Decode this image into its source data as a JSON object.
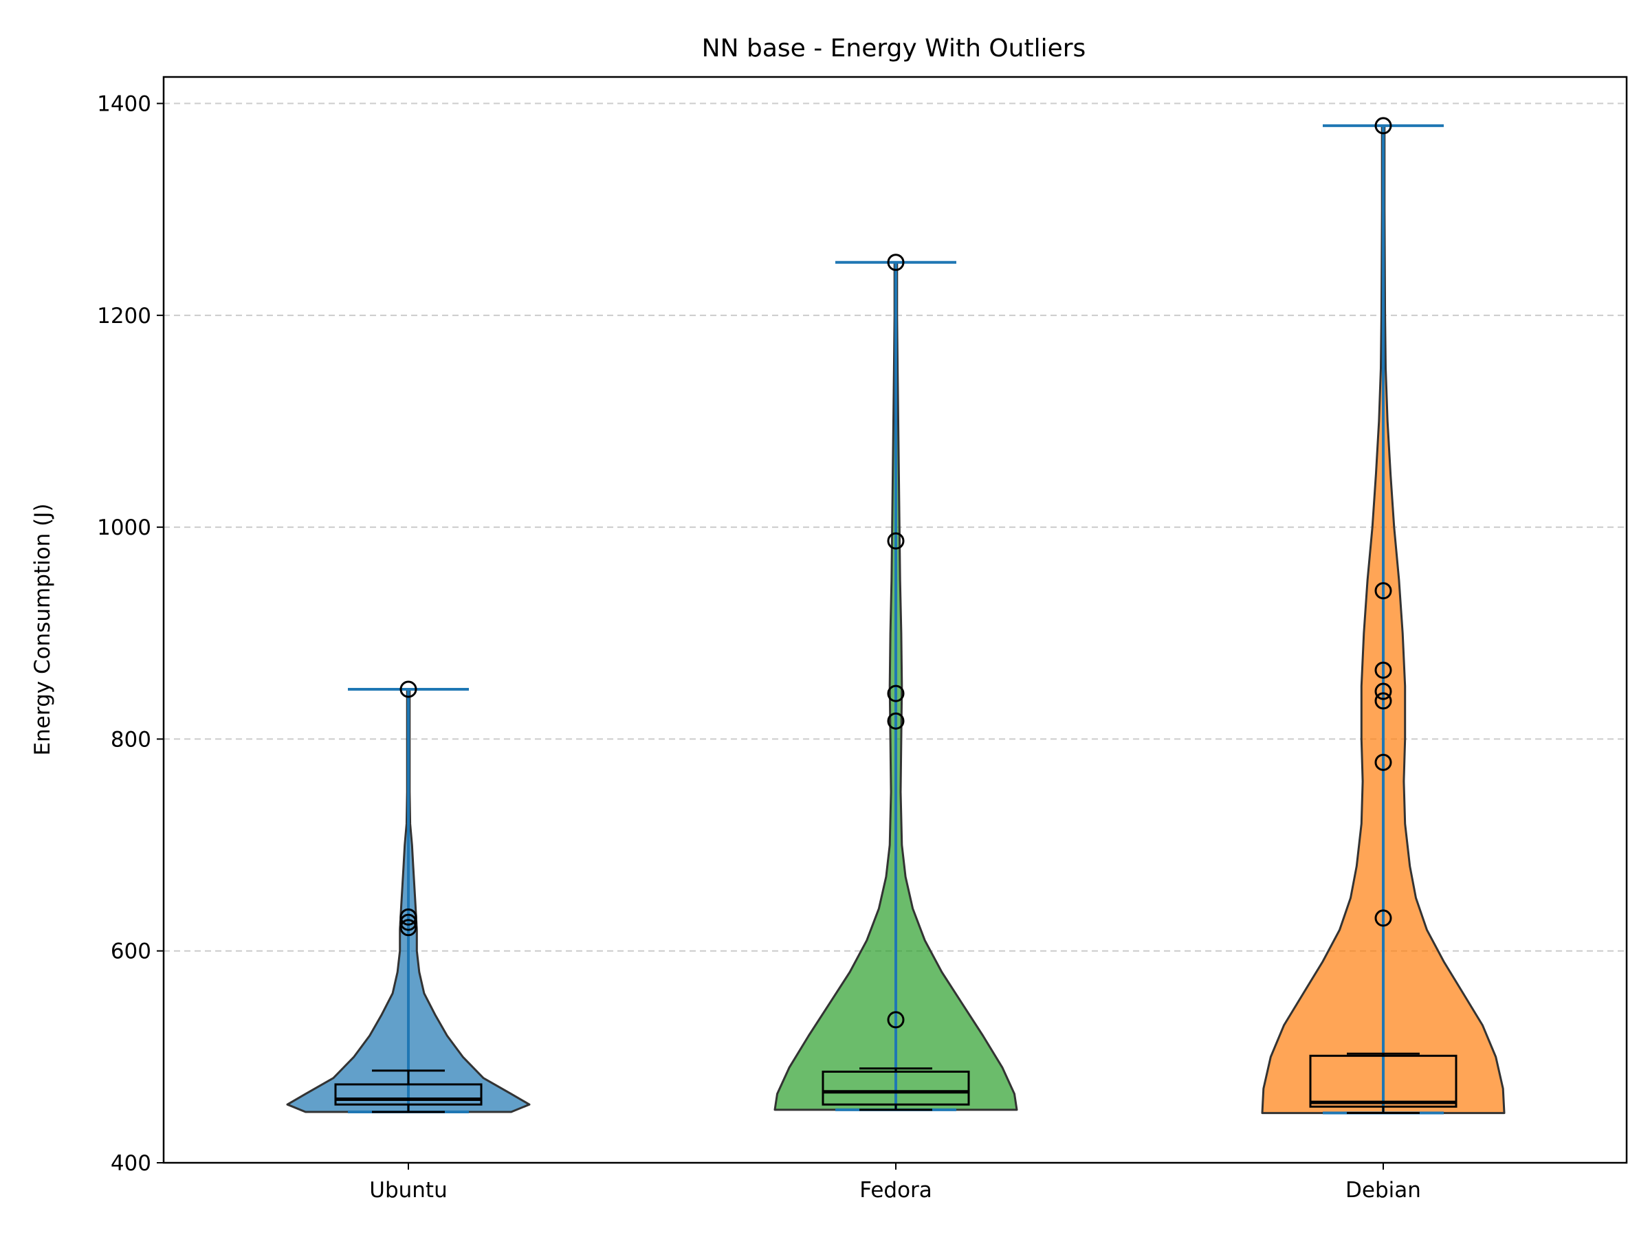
{
  "chart_data": {
    "type": "violin",
    "title": "NN base - Energy With Outliers",
    "xlabel": "",
    "ylabel": "Energy Consumption (J)",
    "ylim": [
      400,
      1425
    ],
    "yticks": [
      400,
      600,
      800,
      1000,
      1200,
      1400
    ],
    "grid": "y-dashed",
    "categories": [
      "Ubuntu",
      "Fedora",
      "Debian"
    ],
    "series": [
      {
        "category": "Ubuntu",
        "color": "#1f77b4",
        "min": 448,
        "max": 847,
        "box": {
          "q1": 455,
          "median": 460,
          "q3": 474,
          "whisker_low": 448,
          "whisker_high": 487
        },
        "outliers": [
          847,
          632,
          627,
          622
        ],
        "density": [
          [
            448,
            0.85
          ],
          [
            455,
            1.0
          ],
          [
            465,
            0.85
          ],
          [
            480,
            0.62
          ],
          [
            500,
            0.45
          ],
          [
            520,
            0.32
          ],
          [
            540,
            0.22
          ],
          [
            560,
            0.13
          ],
          [
            580,
            0.09
          ],
          [
            600,
            0.07
          ],
          [
            620,
            0.07
          ],
          [
            640,
            0.06
          ],
          [
            660,
            0.05
          ],
          [
            680,
            0.04
          ],
          [
            700,
            0.03
          ],
          [
            720,
            0.015
          ],
          [
            750,
            0.01
          ],
          [
            800,
            0.01
          ],
          [
            847,
            0.01
          ]
        ]
      },
      {
        "category": "Fedora",
        "color": "#2ca02c",
        "min": 450,
        "max": 1250,
        "box": {
          "q1": 455,
          "median": 467,
          "q3": 486,
          "whisker_low": 450,
          "whisker_high": 489
        },
        "outliers": [
          1250,
          987,
          843,
          817,
          535
        ],
        "density": [
          [
            450,
            1.0
          ],
          [
            465,
            0.98
          ],
          [
            490,
            0.88
          ],
          [
            520,
            0.72
          ],
          [
            550,
            0.55
          ],
          [
            580,
            0.38
          ],
          [
            610,
            0.24
          ],
          [
            640,
            0.14
          ],
          [
            670,
            0.08
          ],
          [
            700,
            0.05
          ],
          [
            750,
            0.04
          ],
          [
            800,
            0.045
          ],
          [
            850,
            0.05
          ],
          [
            900,
            0.045
          ],
          [
            950,
            0.035
          ],
          [
            1000,
            0.03
          ],
          [
            1050,
            0.025
          ],
          [
            1100,
            0.02
          ],
          [
            1150,
            0.015
          ],
          [
            1200,
            0.01
          ],
          [
            1250,
            0.01
          ]
        ]
      },
      {
        "category": "Debian",
        "color": "#ff7f0e",
        "min": 447,
        "max": 1379,
        "box": {
          "q1": 453,
          "median": 457,
          "q3": 501,
          "whisker_low": 447,
          "whisker_high": 503
        },
        "outliers": [
          1379,
          940,
          865,
          845,
          836,
          778,
          631
        ],
        "density": [
          [
            447,
            1.0
          ],
          [
            470,
            0.99
          ],
          [
            500,
            0.93
          ],
          [
            530,
            0.82
          ],
          [
            560,
            0.66
          ],
          [
            590,
            0.5
          ],
          [
            620,
            0.36
          ],
          [
            650,
            0.27
          ],
          [
            680,
            0.22
          ],
          [
            720,
            0.18
          ],
          [
            760,
            0.17
          ],
          [
            800,
            0.18
          ],
          [
            850,
            0.18
          ],
          [
            900,
            0.16
          ],
          [
            950,
            0.13
          ],
          [
            1000,
            0.09
          ],
          [
            1050,
            0.06
          ],
          [
            1100,
            0.035
          ],
          [
            1150,
            0.02
          ],
          [
            1200,
            0.015
          ],
          [
            1300,
            0.01
          ],
          [
            1379,
            0.01
          ]
        ]
      }
    ]
  }
}
